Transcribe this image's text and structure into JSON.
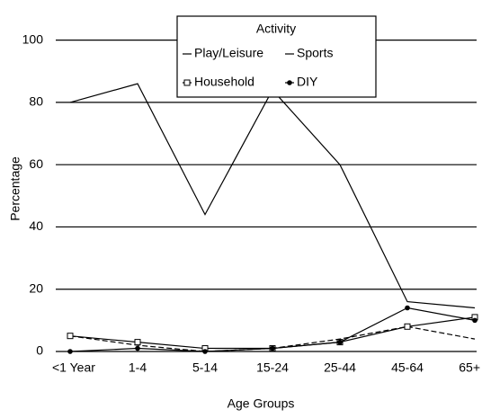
{
  "chart_data": {
    "type": "line",
    "xlabel": "Age Groups",
    "ylabel": "Percentage",
    "legend_title": "Activity",
    "categories": [
      "<1 Year",
      "1-4",
      "5-14",
      "15-24",
      "25-44",
      "45-64",
      "65+"
    ],
    "series": [
      {
        "name": "Play/Leisure",
        "color": "#000000",
        "marker": "none",
        "values": [
          80,
          86,
          44,
          84,
          60,
          16,
          14
        ]
      },
      {
        "name": "Sports",
        "color": "#000000",
        "marker": "none",
        "values": [
          5,
          2,
          0,
          1,
          4,
          8,
          4
        ]
      },
      {
        "name": "Household",
        "color": "#000000",
        "marker": "square",
        "values": [
          5,
          3,
          1,
          1,
          3,
          8,
          11
        ]
      },
      {
        "name": "DIY",
        "color": "#000000",
        "marker": "diamond",
        "values": [
          0,
          1,
          0,
          1,
          3,
          14,
          10
        ]
      }
    ],
    "ylim": [
      0,
      110
    ],
    "yticks": [
      0,
      20,
      40,
      60,
      80,
      100
    ],
    "grid": true,
    "legend": "top"
  }
}
